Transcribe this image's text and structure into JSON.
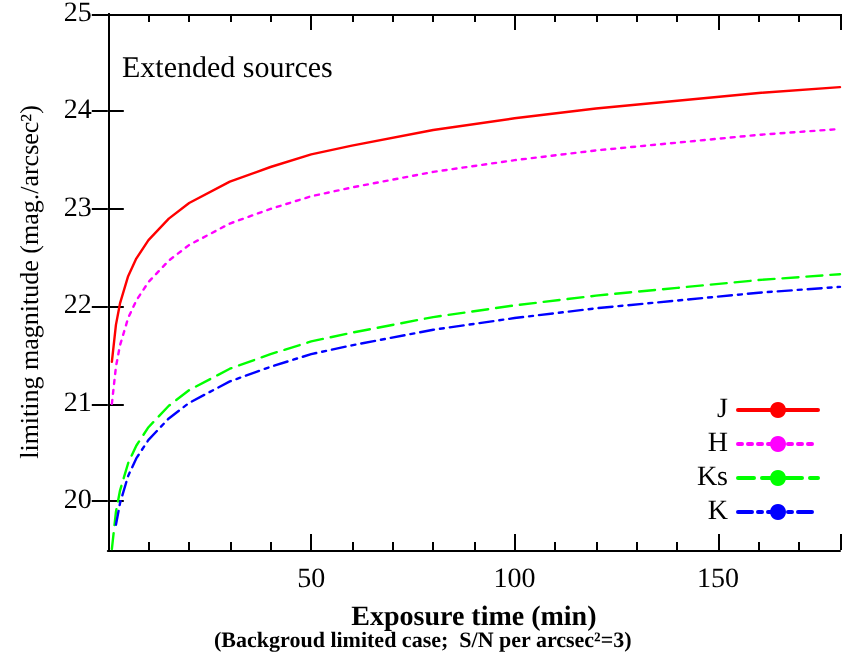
{
  "chart_data": {
    "type": "line",
    "title": "Extended sources",
    "xlabel": "Exposure time (min)",
    "ylabel": "limiting magnitude (mag./arcsec²)",
    "annotations": [
      "(Backgroud limited case;  S/N per arcsec²=3)"
    ],
    "x": [
      1,
      2,
      3,
      5,
      7,
      10,
      15,
      20,
      30,
      40,
      50,
      60,
      80,
      100,
      120,
      140,
      160,
      180
    ],
    "series": [
      {
        "name": "J",
        "color": "#ff0000",
        "line_style": "solid",
        "values": [
          21.43,
          21.81,
          22.03,
          22.31,
          22.49,
          22.68,
          22.9,
          23.06,
          23.28,
          23.43,
          23.56,
          23.65,
          23.81,
          23.93,
          24.03,
          24.11,
          24.19,
          24.25
        ]
      },
      {
        "name": "H",
        "color": "#ff00ff",
        "line_style": "dotted",
        "values": [
          21.0,
          21.38,
          21.6,
          21.88,
          22.06,
          22.25,
          22.47,
          22.63,
          22.85,
          23.0,
          23.13,
          23.22,
          23.38,
          23.5,
          23.6,
          23.68,
          23.76,
          23.82
        ]
      },
      {
        "name": "Ks",
        "color": "#00ff00",
        "line_style": "dashed",
        "values": [
          19.51,
          19.89,
          20.11,
          20.39,
          20.57,
          20.76,
          20.98,
          21.14,
          21.36,
          21.51,
          21.64,
          21.73,
          21.89,
          22.01,
          22.11,
          22.19,
          22.27,
          22.33
        ]
      },
      {
        "name": "K",
        "color": "#0000ff",
        "line_style": "dashdot",
        "values": [
          null,
          19.76,
          19.98,
          20.26,
          20.44,
          20.63,
          20.85,
          21.01,
          21.23,
          21.38,
          21.51,
          21.6,
          21.76,
          21.88,
          21.98,
          22.06,
          22.14,
          22.2
        ]
      }
    ],
    "xlim": [
      0,
      180
    ],
    "xticks": [
      50,
      100,
      150
    ],
    "ylim": [
      19.5,
      25
    ],
    "yticks": [
      20,
      21,
      22,
      23,
      24,
      25
    ],
    "grid": false,
    "legend": "bottom right",
    "marker": "none"
  }
}
